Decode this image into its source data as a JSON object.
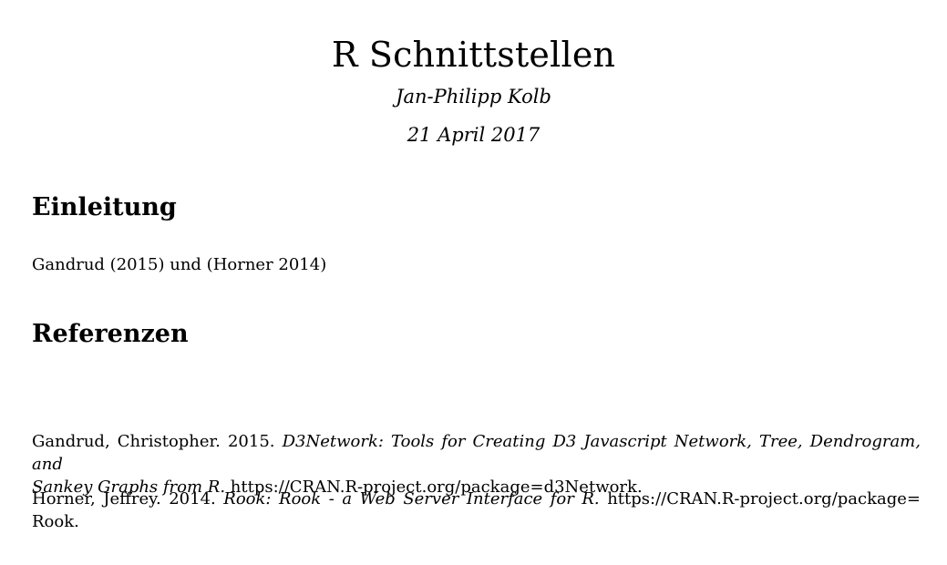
{
  "document": {
    "title": "R Schnittstellen",
    "author": "Jan-Philipp Kolb",
    "date": "21 April 2017"
  },
  "sections": {
    "intro": {
      "heading": "Einleitung",
      "text": "Gandrud (2015) und (Horner 2014)"
    },
    "references": {
      "heading": "Referenzen",
      "entries": [
        {
          "authors_year": "Gandrud, Christopher. 2015.",
          "title_line1": "D3Network: Tools for Creating D3 Javascript Network, Tree, Dendrogram, and",
          "title_line2": "Sankey Graphs from R.",
          "url": "https://CRAN.R-project.org/package=d3Network."
        },
        {
          "authors_year": "Horner, Jeffrey. 2014.",
          "title": "Rook: Rook - a Web Server Interface for R.",
          "url_line1": "https://CRAN.R-project.org/package=",
          "url_line2": "Rook."
        }
      ]
    }
  }
}
